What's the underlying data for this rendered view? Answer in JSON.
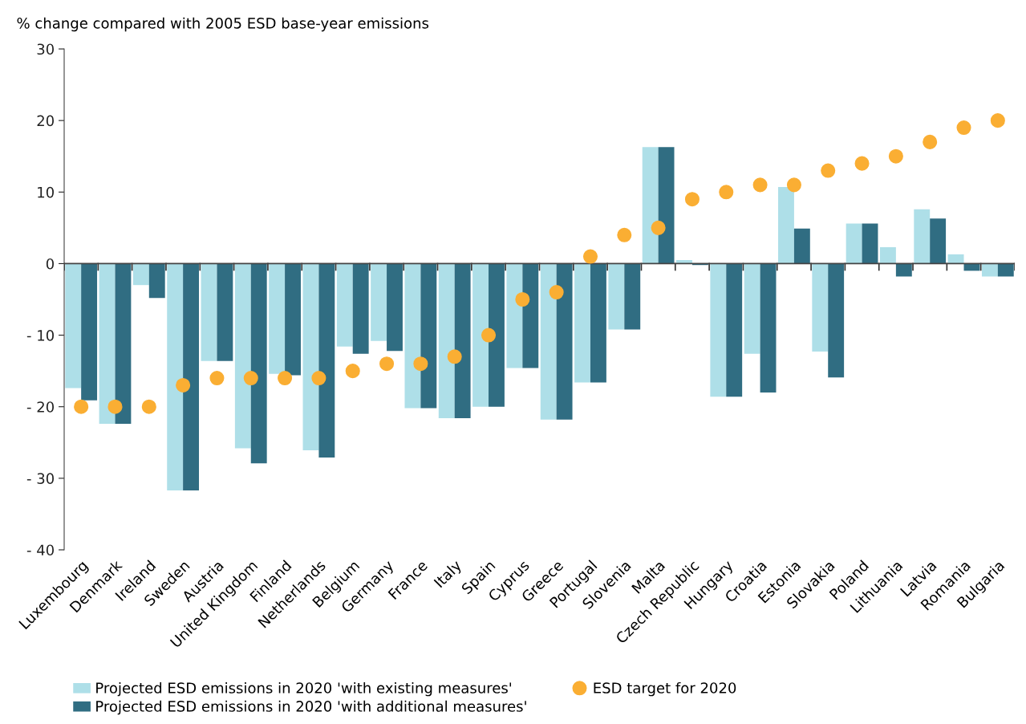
{
  "chart_data": {
    "type": "bar",
    "ylabel": "% change compared with 2005 ESD base-year emissions",
    "categories": [
      "Luxembourg",
      "Denmark",
      "Ireland",
      "Sweden",
      "Austria",
      "United Kingdom",
      "Finland",
      "Netherlands",
      "Belgium",
      "Germany",
      "France",
      "Italy",
      "Spain",
      "Cyprus",
      "Greece",
      "Portugal",
      "Slovenia",
      "Malta",
      "Czech Republic",
      "Hungary",
      "Croatia",
      "Estonia",
      "Slovakia",
      "Poland",
      "Lithuania",
      "Latvia",
      "Romania",
      "Bulgaria"
    ],
    "series": [
      {
        "name": "Projected ESD emissions in 2020 'with existing measures'",
        "color": "#aedfe8",
        "values": [
          -17.4,
          -22.4,
          -3.0,
          -31.7,
          -13.6,
          -25.8,
          -15.4,
          -26.1,
          -11.6,
          -10.8,
          -20.2,
          -21.6,
          -20.0,
          -14.6,
          -21.8,
          -16.6,
          -9.2,
          16.3,
          0.5,
          -18.6,
          -12.6,
          10.7,
          -12.3,
          5.6,
          2.3,
          7.6,
          1.3,
          -1.8
        ]
      },
      {
        "name": "Projected ESD emissions in 2020 'with additional measures'",
        "color": "#306d82",
        "values": [
          -19.1,
          -22.4,
          -4.8,
          -31.7,
          -13.6,
          -27.9,
          -15.6,
          -27.1,
          -12.6,
          -12.2,
          -20.2,
          -21.6,
          -20.0,
          -14.6,
          -21.8,
          -16.6,
          -9.2,
          16.3,
          -0.2,
          -18.6,
          -18.0,
          4.9,
          -15.9,
          5.6,
          -1.8,
          6.3,
          -1.0,
          -1.8
        ]
      },
      {
        "name": "ESD target for 2020",
        "type": "scatter",
        "color": "#faae33",
        "values": [
          -20,
          -20,
          -20,
          -17,
          -16,
          -16,
          -16,
          -16,
          -15,
          -14,
          -14,
          -13,
          -10,
          -5,
          -4,
          1,
          4,
          5,
          9,
          10,
          11,
          11,
          13,
          14,
          15,
          17,
          19,
          20
        ]
      }
    ],
    "ylim": [
      -40,
      30
    ],
    "yticks": [
      {
        "value": -40,
        "label": "- 40"
      },
      {
        "value": -30,
        "label": "- 30"
      },
      {
        "value": -20,
        "label": "- 20"
      },
      {
        "value": -10,
        "label": "- 10"
      },
      0,
      10,
      20,
      30
    ],
    "marker": "circle",
    "legend": "bottom"
  }
}
